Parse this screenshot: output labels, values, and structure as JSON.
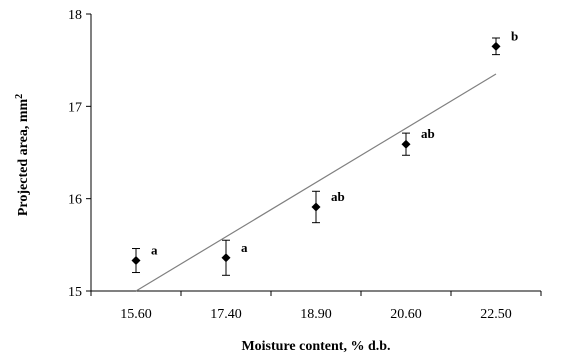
{
  "chart_data": {
    "type": "scatter",
    "title": "",
    "xlabel": "Moisture content, % d.b.",
    "ylabel": "Projected area, mm",
    "ylabel_superscript": "2",
    "ylim": [
      15,
      18
    ],
    "yticks": [
      "15",
      "16",
      "17",
      "18"
    ],
    "categories": [
      "15.60",
      "17.40",
      "18.90",
      "20.60",
      "22.50"
    ],
    "series": [
      {
        "values": [
          15.33,
          15.36,
          15.91,
          16.59,
          17.65
        ],
        "error": [
          0.13,
          0.19,
          0.17,
          0.12,
          0.09
        ],
        "labels": [
          "a",
          "a",
          "ab",
          "ab",
          "b"
        ],
        "marker": "diamond",
        "color": "#000000"
      }
    ],
    "trendline": {
      "type": "linear",
      "color": "#808080",
      "y_start": 15.0,
      "y_end": 17.35
    },
    "grid": false,
    "legend": "none"
  }
}
